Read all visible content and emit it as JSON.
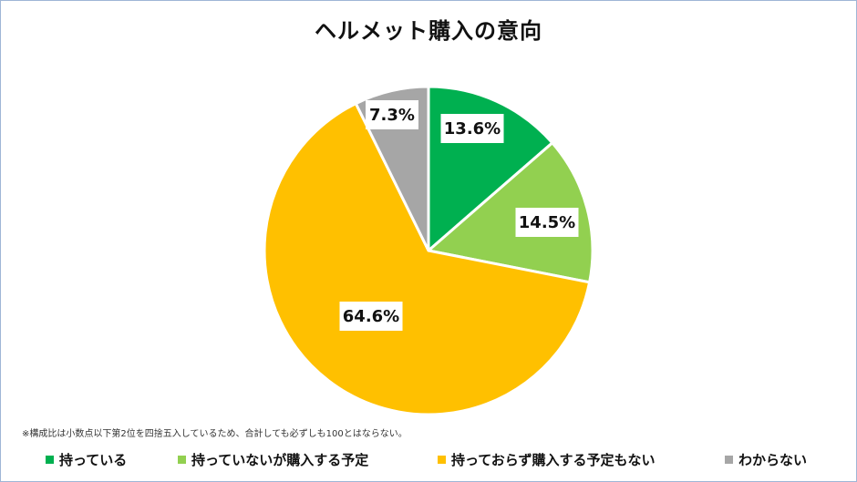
{
  "title": "ヘルメット購入の意向",
  "note": "※構成比は小数点以下第2位を四捨五入しているため、合計しても必ずしも100とはならない。",
  "chart_data": {
    "type": "pie",
    "title": "ヘルメット購入の意向",
    "categories": [
      "持っている",
      "持っていないが購入する予定",
      "持っておらず購入する予定もない",
      "わからない"
    ],
    "values": [
      13.6,
      14.5,
      64.6,
      7.3
    ],
    "labels": [
      "13.6%",
      "14.5%",
      "64.6%",
      "7.3%"
    ],
    "colors": [
      "#00b050",
      "#92d050",
      "#ffc000",
      "#a6a6a6"
    ],
    "legend_position": "bottom",
    "start": "12 o'clock, clockwise"
  }
}
